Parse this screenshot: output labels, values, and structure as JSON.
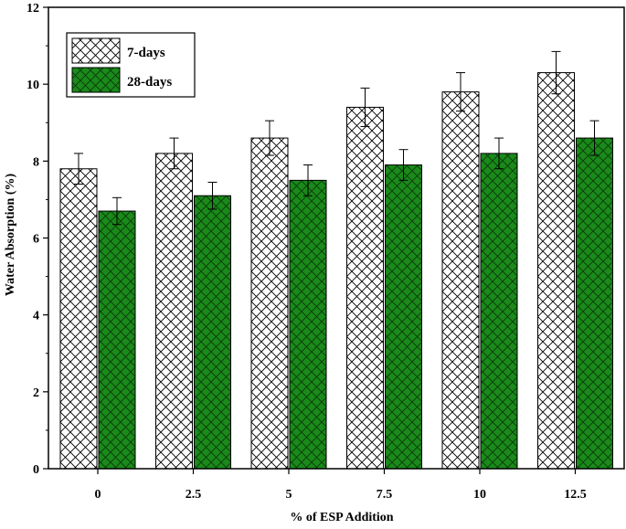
{
  "chart_data": {
    "type": "bar",
    "title": "",
    "xlabel": "% of ESP Addition",
    "ylabel": "Water Absorption (%)",
    "categories": [
      "0",
      "2.5",
      "5",
      "7.5",
      "10",
      "12.5"
    ],
    "ylim": [
      0,
      12
    ],
    "yticks": [
      "0",
      "2",
      "4",
      "6",
      "8",
      "10",
      "12"
    ],
    "series": [
      {
        "name": "7-days",
        "values": [
          7.8,
          8.2,
          8.6,
          9.4,
          9.8,
          10.3
        ],
        "errors": [
          0.4,
          0.4,
          0.45,
          0.5,
          0.5,
          0.55
        ],
        "fill": "#ffffff",
        "hatch": "#000000"
      },
      {
        "name": "28-days",
        "values": [
          6.7,
          7.1,
          7.5,
          7.9,
          8.2,
          8.6
        ],
        "errors": [
          0.35,
          0.35,
          0.4,
          0.4,
          0.4,
          0.45
        ],
        "fill": "#1a8a1a",
        "hatch": "#0a3a0a"
      }
    ],
    "legend_position": "top-left",
    "grid": false,
    "error_bars": true
  }
}
